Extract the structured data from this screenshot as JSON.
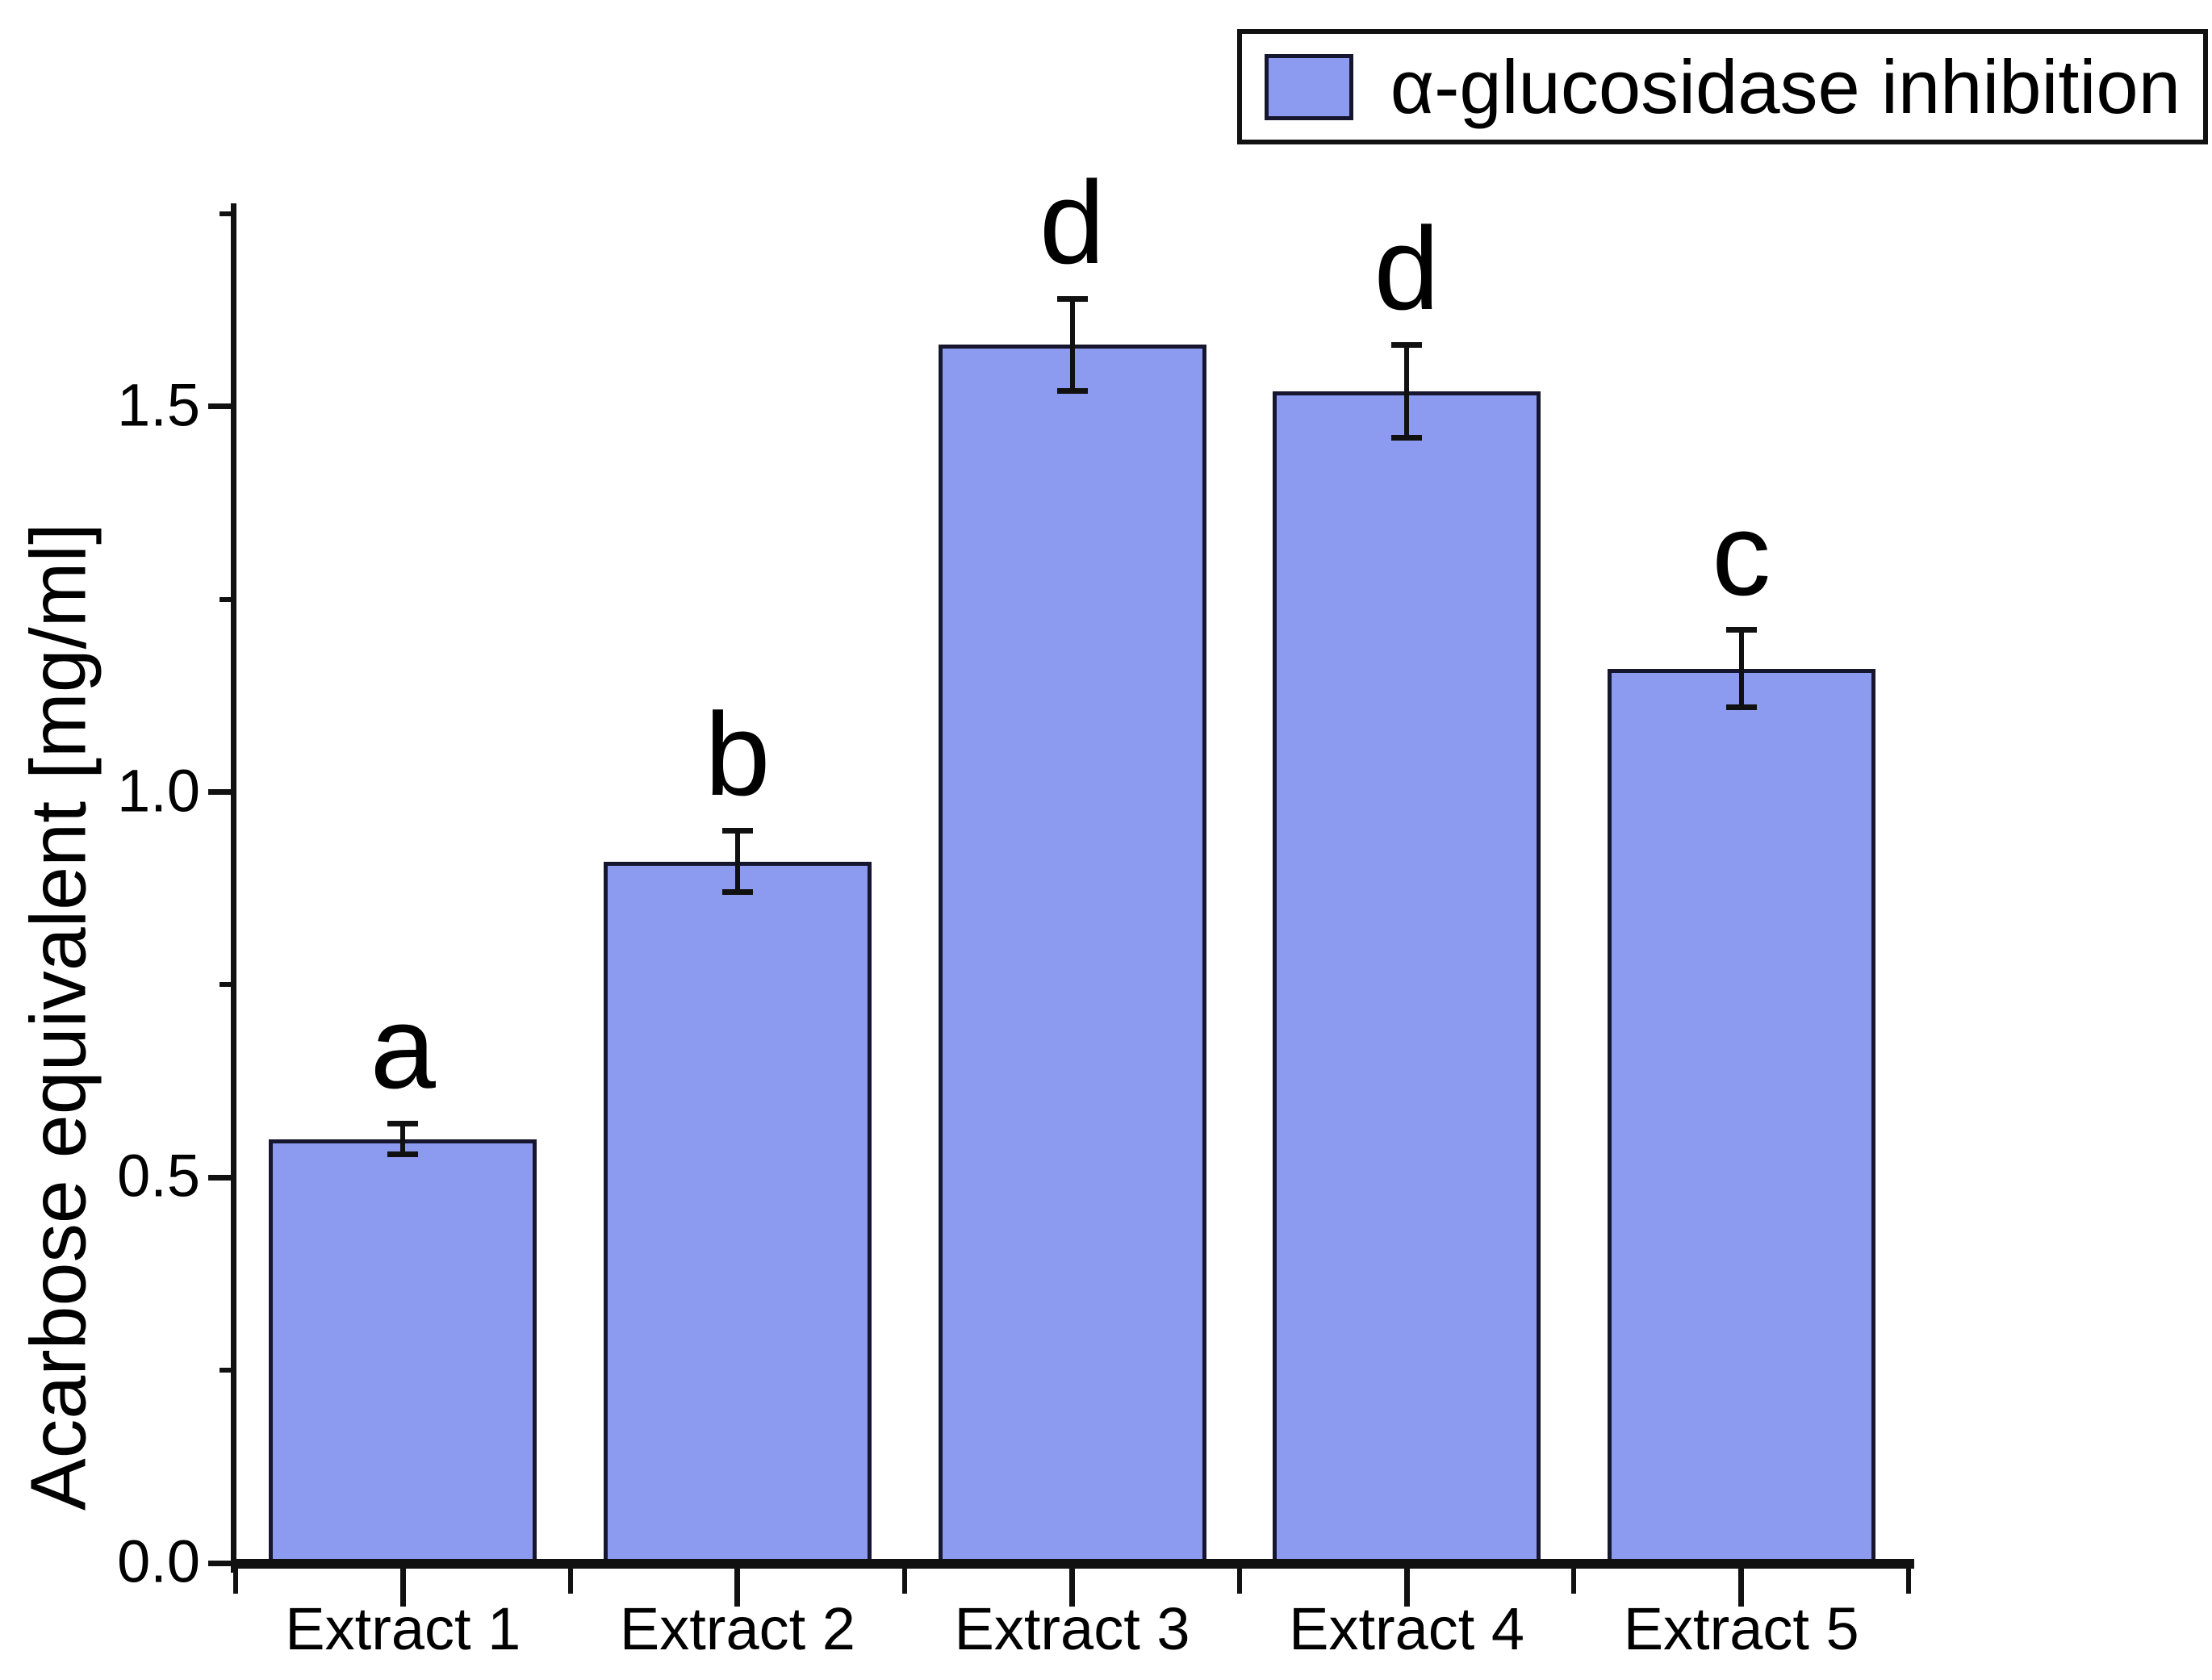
{
  "chart_data": {
    "type": "bar",
    "title": "",
    "categories": [
      "Extract 1",
      "Extract 2",
      "Extract 3",
      "Extract 4",
      "Extract 5"
    ],
    "series": [
      {
        "name": "α-glucosidase inhibition",
        "values": [
          0.55,
          0.91,
          1.58,
          1.52,
          1.16
        ],
        "errors": [
          0.02,
          0.04,
          0.06,
          0.06,
          0.05
        ],
        "significance_letters": [
          "a",
          "b",
          "d",
          "d",
          "c"
        ]
      }
    ],
    "xlabel": "",
    "ylabel": "Acarbose equivalent [mg/ml]",
    "ylim": [
      0,
      1.75
    ],
    "yticks": [
      0.0,
      0.5,
      1.0,
      1.5
    ],
    "ytick_labels": [
      "0.0",
      "0.5",
      "1.0",
      "1.5"
    ],
    "yminor_interval": 0.25,
    "grid": false,
    "legend_position": "top-right",
    "error_bar_style": "cap",
    "colors": {
      "bar_fill": "#8C9BF0",
      "bar_edge": "#16162E",
      "error_bar": "#111111",
      "axis": "#111111",
      "text": "#000000",
      "background": "#FFFFFF",
      "legend_border": "#111111"
    }
  }
}
